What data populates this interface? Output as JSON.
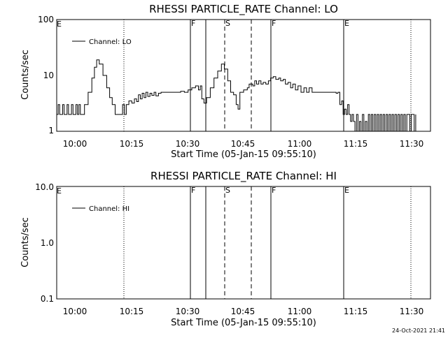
{
  "footer": {
    "timestamp": "24-Oct-2021 21:41"
  },
  "chart_data": [
    {
      "type": "line",
      "title": "RHESSI PARTICLE_RATE Channel: LO",
      "xlabel": "Start Time (05-Jan-15 09:55:10)",
      "ylabel": "Counts/sec",
      "x_unit": "minutes after 09:55:10",
      "xlim": [
        "09:55:10",
        "11:36:10"
      ],
      "ylim": [
        1,
        100
      ],
      "yscale": "log",
      "xticks": [
        "10:00",
        "10:15",
        "10:30",
        "10:45",
        "11:00",
        "11:15",
        "11:30"
      ],
      "yticks": [
        "1",
        "10",
        "100"
      ],
      "legend": {
        "label": "Channel: LO",
        "position": "top-left"
      },
      "markers": [
        {
          "label": "E",
          "time": "09:55:10",
          "style": "dotted"
        },
        {
          "label": "",
          "time": "10:13:00",
          "style": "dotted"
        },
        {
          "label": "F",
          "time": "10:31:10",
          "style": "solid"
        },
        {
          "label": "",
          "time": "10:35:10",
          "style": "solid"
        },
        {
          "label": "S",
          "time": "10:39:30",
          "style": "dashed"
        },
        {
          "label": "",
          "time": "10:46:30",
          "style": "dashed"
        },
        {
          "label": "F",
          "time": "10:52:50",
          "style": "solid"
        },
        {
          "label": "E",
          "time": "11:12:10",
          "style": "solid"
        },
        {
          "label": "",
          "time": "11:30:10",
          "style": "dotted"
        }
      ],
      "series": [
        {
          "name": "Channel: LO",
          "points": [
            [
              0,
              2
            ],
            [
              0.4,
              3
            ],
            [
              0.8,
              2
            ],
            [
              1.2,
              2
            ],
            [
              1.6,
              3
            ],
            [
              2.0,
              2
            ],
            [
              2.4,
              2
            ],
            [
              2.8,
              3
            ],
            [
              3.2,
              2
            ],
            [
              3.6,
              2
            ],
            [
              4.0,
              3
            ],
            [
              4.4,
              2
            ],
            [
              4.8,
              2
            ],
            [
              5.2,
              3
            ],
            [
              5.6,
              2
            ],
            [
              6.0,
              3
            ],
            [
              6.4,
              2
            ],
            [
              6.8,
              2
            ],
            [
              7.5,
              3
            ],
            [
              8.5,
              5
            ],
            [
              9.5,
              9
            ],
            [
              10.2,
              14
            ],
            [
              10.8,
              19
            ],
            [
              11.5,
              16
            ],
            [
              12.5,
              10
            ],
            [
              13.5,
              6
            ],
            [
              14.3,
              4
            ],
            [
              15.0,
              3
            ],
            [
              15.8,
              2
            ],
            [
              17.2,
              2
            ],
            [
              17.8,
              3
            ],
            [
              18.3,
              2
            ],
            [
              18.8,
              3
            ],
            [
              19.5,
              3.5
            ],
            [
              20.3,
              3.2
            ],
            [
              21.0,
              3.8
            ],
            [
              21.6,
              3.4
            ],
            [
              22.1,
              4.5
            ],
            [
              22.6,
              3.8
            ],
            [
              23.1,
              4.8
            ],
            [
              23.6,
              4
            ],
            [
              24.1,
              5
            ],
            [
              24.6,
              4.2
            ],
            [
              25.2,
              4.8
            ],
            [
              25.7,
              4.4
            ],
            [
              26.3,
              5
            ],
            [
              26.8,
              4.3
            ],
            [
              27.5,
              4.8
            ],
            [
              28.2,
              5
            ],
            [
              30.0,
              5
            ],
            [
              31.5,
              5
            ],
            [
              32.5,
              5
            ],
            [
              33.5,
              5.2
            ],
            [
              34.5,
              5
            ],
            [
              35.5,
              5.5
            ],
            [
              36.5,
              6
            ],
            [
              37.5,
              6.5
            ],
            [
              38.3,
              5.5
            ],
            [
              38.8,
              6.5
            ],
            [
              39.2,
              3.8
            ],
            [
              39.8,
              3.2
            ],
            [
              40.5,
              4
            ],
            [
              41.5,
              6
            ],
            [
              42.5,
              9
            ],
            [
              43.5,
              12
            ],
            [
              44.5,
              16
            ],
            [
              45.3,
              13
            ],
            [
              46.2,
              8
            ],
            [
              47.0,
              5
            ],
            [
              47.8,
              4.5
            ],
            [
              48.5,
              3
            ],
            [
              49.0,
              2.5
            ],
            [
              49.5,
              5
            ],
            [
              50.5,
              5.5
            ],
            [
              51.5,
              6
            ],
            [
              52.0,
              7
            ],
            [
              53.0,
              6.5
            ],
            [
              53.5,
              8
            ],
            [
              54.0,
              7
            ],
            [
              54.6,
              8
            ],
            [
              55.2,
              7
            ],
            [
              55.8,
              7.5
            ],
            [
              56.5,
              7
            ],
            [
              57.2,
              8
            ],
            [
              57.8,
              9
            ],
            [
              58.5,
              9.5
            ],
            [
              59.2,
              8.5
            ],
            [
              60.0,
              9
            ],
            [
              60.5,
              8
            ],
            [
              61.2,
              8.5
            ],
            [
              61.8,
              7
            ],
            [
              62.5,
              7.5
            ],
            [
              63.2,
              6
            ],
            [
              63.8,
              7
            ],
            [
              64.5,
              5.5
            ],
            [
              65.2,
              6.5
            ],
            [
              66.0,
              5
            ],
            [
              66.8,
              6
            ],
            [
              67.5,
              5
            ],
            [
              68.2,
              6
            ],
            [
              69.0,
              5
            ],
            [
              70.0,
              5
            ],
            [
              71.0,
              5
            ],
            [
              72.0,
              5
            ],
            [
              73.0,
              5
            ],
            [
              75.5,
              4.8
            ],
            [
              76.0,
              5
            ],
            [
              76.5,
              3
            ],
            [
              77.0,
              3.5
            ],
            [
              77.4,
              2
            ],
            [
              77.8,
              2.5
            ],
            [
              78.2,
              2
            ],
            [
              78.6,
              3
            ],
            [
              79.0,
              2
            ],
            [
              79.4,
              1.5
            ],
            [
              79.8,
              2
            ],
            [
              80.2,
              1.5
            ],
            [
              80.6,
              1
            ],
            [
              81.0,
              2
            ],
            [
              81.4,
              1
            ],
            [
              81.8,
              1.5
            ],
            [
              82.2,
              1
            ],
            [
              82.6,
              2
            ],
            [
              83.0,
              1
            ],
            [
              83.4,
              1.5
            ],
            [
              83.8,
              1
            ],
            [
              84.2,
              2
            ],
            [
              84.6,
              1
            ],
            [
              85.0,
              2
            ],
            [
              85.4,
              1
            ],
            [
              85.8,
              2
            ],
            [
              86.2,
              1
            ],
            [
              86.6,
              2
            ],
            [
              87.0,
              1
            ],
            [
              87.4,
              2
            ],
            [
              87.8,
              1
            ],
            [
              88.2,
              2
            ],
            [
              88.6,
              1
            ],
            [
              89.0,
              2
            ],
            [
              89.4,
              1
            ],
            [
              89.8,
              2
            ],
            [
              90.2,
              1
            ],
            [
              90.6,
              2
            ],
            [
              91.0,
              1
            ],
            [
              91.4,
              2
            ],
            [
              91.8,
              1
            ],
            [
              92.2,
              2
            ],
            [
              92.6,
              1
            ],
            [
              93.0,
              2
            ],
            [
              93.4,
              1
            ],
            [
              93.8,
              2
            ],
            [
              94.2,
              1
            ],
            [
              94.6,
              2
            ],
            [
              95.0,
              2
            ],
            [
              95.4,
              1
            ],
            [
              95.8,
              2
            ],
            [
              96.2,
              2
            ],
            [
              96.6,
              1
            ],
            [
              97.0,
              2
            ]
          ]
        }
      ]
    },
    {
      "type": "line",
      "title": "RHESSI PARTICLE_RATE Channel: HI",
      "xlabel": "Start Time (05-Jan-15 09:55:10)",
      "ylabel": "Counts/sec",
      "x_unit": "minutes after 09:55:10",
      "xlim": [
        "09:55:10",
        "11:36:10"
      ],
      "ylim": [
        0.1,
        10
      ],
      "yscale": "log",
      "xticks": [
        "10:00",
        "10:15",
        "10:30",
        "10:45",
        "11:00",
        "11:15",
        "11:30"
      ],
      "yticks": [
        "0.1",
        "1.0",
        "10.0"
      ],
      "legend": {
        "label": "Channel: HI",
        "position": "top-left"
      },
      "markers": [
        {
          "label": "E",
          "time": "09:55:10",
          "style": "dotted"
        },
        {
          "label": "",
          "time": "10:13:00",
          "style": "dotted"
        },
        {
          "label": "F",
          "time": "10:31:10",
          "style": "solid"
        },
        {
          "label": "",
          "time": "10:35:10",
          "style": "solid"
        },
        {
          "label": "S",
          "time": "10:39:30",
          "style": "dashed"
        },
        {
          "label": "",
          "time": "10:46:30",
          "style": "dashed"
        },
        {
          "label": "F",
          "time": "10:52:50",
          "style": "solid"
        },
        {
          "label": "E",
          "time": "11:12:10",
          "style": "solid"
        },
        {
          "label": "",
          "time": "11:30:10",
          "style": "dotted"
        }
      ],
      "series": [
        {
          "name": "Channel: HI",
          "points": []
        }
      ]
    }
  ]
}
